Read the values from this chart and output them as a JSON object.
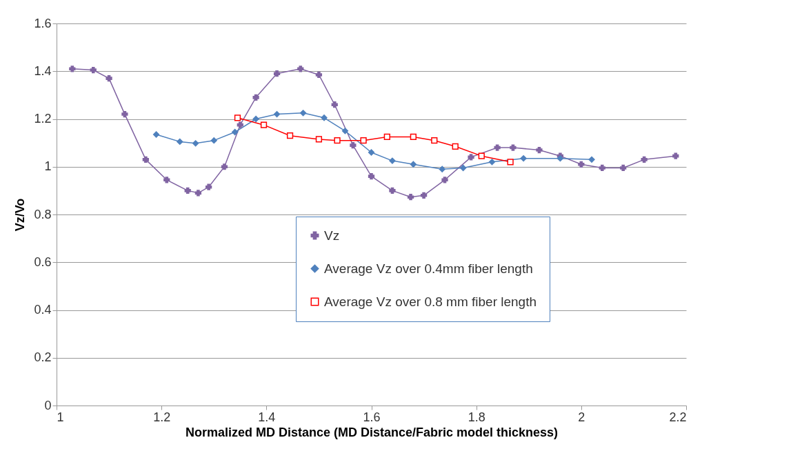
{
  "chart_data": {
    "type": "line",
    "xlabel": "Normalized MD Distance (MD Distance/Fabric model thickness)",
    "ylabel": "Vz/Vo",
    "xlim": [
      1,
      2.2
    ],
    "xticks": [
      1,
      1.2,
      1.4,
      1.6,
      1.8,
      2,
      2.2
    ],
    "ylim": [
      0,
      1.6
    ],
    "yticks": [
      0,
      0.2,
      0.4,
      0.6,
      0.8,
      1,
      1.2,
      1.4,
      1.6
    ],
    "grid": "y",
    "legend": "bottom right",
    "series": [
      {
        "name": "Vz",
        "color": "#8064a2",
        "marker": "cross",
        "x": [
          1.03,
          1.07,
          1.1,
          1.13,
          1.17,
          1.21,
          1.25,
          1.27,
          1.29,
          1.32,
          1.35,
          1.38,
          1.42,
          1.465,
          1.5,
          1.53,
          1.565,
          1.6,
          1.64,
          1.675,
          1.7,
          1.74,
          1.79,
          1.84,
          1.87,
          1.92,
          1.96,
          2,
          2.04,
          2.08,
          2.12,
          2.18
        ],
        "values": [
          1.41,
          1.405,
          1.37,
          1.22,
          1.03,
          0.945,
          0.9,
          0.89,
          0.915,
          1,
          1.175,
          1.29,
          1.39,
          1.41,
          1.385,
          1.26,
          1.09,
          0.96,
          0.9,
          0.873,
          0.88,
          0.945,
          1.04,
          1.08,
          1.08,
          1.07,
          1.045,
          1.01,
          0.995,
          0.995,
          1.03,
          1.045
        ]
      },
      {
        "name": "Average Vz over 0.4mm fiber length",
        "color": "#4f81bd",
        "marker": "diamond",
        "x": [
          1.19,
          1.235,
          1.265,
          1.3,
          1.34,
          1.38,
          1.42,
          1.47,
          1.51,
          1.55,
          1.6,
          1.64,
          1.68,
          1.735,
          1.775,
          1.83,
          1.89,
          1.96,
          2.02
        ],
        "values": [
          1.135,
          1.105,
          1.098,
          1.11,
          1.145,
          1.2,
          1.22,
          1.225,
          1.205,
          1.15,
          1.06,
          1.025,
          1.01,
          0.99,
          0.995,
          1.02,
          1.035,
          1.035,
          1.03
        ]
      },
      {
        "name": "Average Vz over 0.8 mm fiber length",
        "color": "#ff0000",
        "marker": "square",
        "x": [
          1.345,
          1.395,
          1.445,
          1.5,
          1.535,
          1.585,
          1.63,
          1.68,
          1.72,
          1.76,
          1.81,
          1.865
        ],
        "values": [
          1.205,
          1.175,
          1.13,
          1.115,
          1.11,
          1.11,
          1.125,
          1.125,
          1.11,
          1.085,
          1.045,
          1.02
        ]
      }
    ]
  }
}
